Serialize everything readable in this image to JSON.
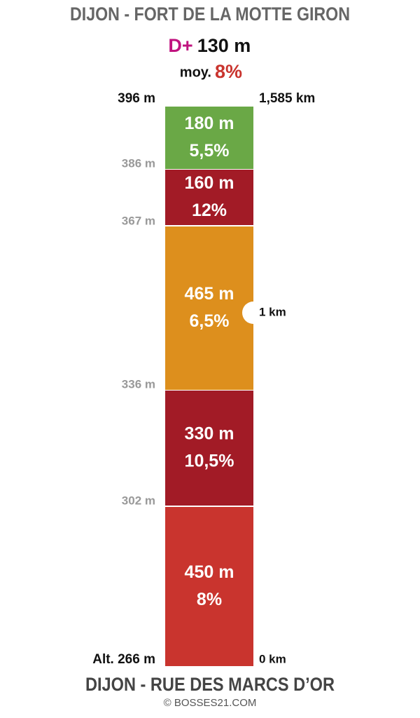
{
  "header": {
    "title": "DIJON - FORT DE LA MOTTE GIRON",
    "gain_label": "D+",
    "gain": "130 m",
    "avg_label": "moy.",
    "avg": "8%"
  },
  "profile": {
    "segments": [
      {
        "length": "180 m",
        "grade": "5,5%",
        "color": "#6aa846"
      },
      {
        "length": "160 m",
        "grade": "12%",
        "color": "#a21b26"
      },
      {
        "length": "465 m",
        "grade": "6,5%",
        "color": "#dd8f1d"
      },
      {
        "length": "330 m",
        "grade": "10,5%",
        "color": "#a21b26"
      },
      {
        "length": "450 m",
        "grade": "8%",
        "color": "#c9342e"
      }
    ],
    "altitudes": [
      "396 m",
      "386 m",
      "367 m",
      "336 m",
      "302 m",
      "Alt. 266 m"
    ],
    "distances": [
      "1,585 km",
      "1 km",
      "0 km"
    ]
  },
  "footer": {
    "title": "DIJON - RUE DES MARCS D’OR",
    "credit": "© BOSSES21.COM"
  }
}
